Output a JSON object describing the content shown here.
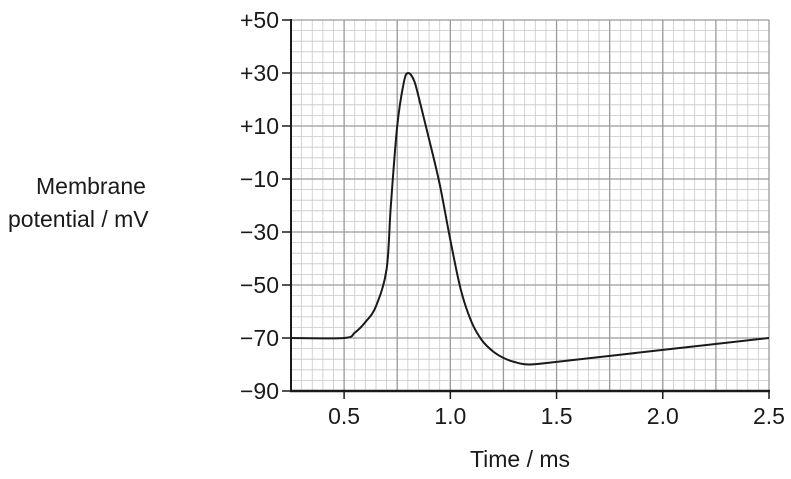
{
  "chart_data": {
    "type": "line",
    "title": "",
    "xlabel": "Time / ms",
    "ylabel_lines": [
      "Membrane",
      "potential / mV"
    ],
    "xlim": [
      0.25,
      2.5
    ],
    "ylim": [
      -90,
      50
    ],
    "x_ticks": [
      0.5,
      1.0,
      1.5,
      2.0,
      2.5
    ],
    "x_tick_labels": [
      "0.5",
      "1.0",
      "1.5",
      "2.0",
      "2.5"
    ],
    "y_ticks": [
      50,
      30,
      10,
      -10,
      -30,
      -50,
      -70,
      -90
    ],
    "y_tick_labels": [
      "+50",
      "+30",
      "+10",
      "−10",
      "−30",
      "−50",
      "−70",
      "−90"
    ],
    "grid": true,
    "minor_grid": true,
    "legend": "none",
    "series": [
      {
        "color": "#1a1a1a",
        "x": [
          0.25,
          0.5,
          0.55,
          0.6,
          0.65,
          0.7,
          0.72,
          0.75,
          0.78,
          0.8,
          0.83,
          0.86,
          0.9,
          0.95,
          1.0,
          1.05,
          1.1,
          1.15,
          1.2,
          1.25,
          1.3,
          1.37,
          1.5,
          2.0,
          2.5
        ],
        "y": [
          -70,
          -70,
          -68,
          -64,
          -58,
          -44,
          -20,
          10,
          26,
          30,
          27,
          18,
          5,
          -12,
          -33,
          -52,
          -64,
          -71,
          -75,
          -77.5,
          -79,
          -80,
          -79,
          -74.5,
          -70
        ]
      }
    ]
  }
}
